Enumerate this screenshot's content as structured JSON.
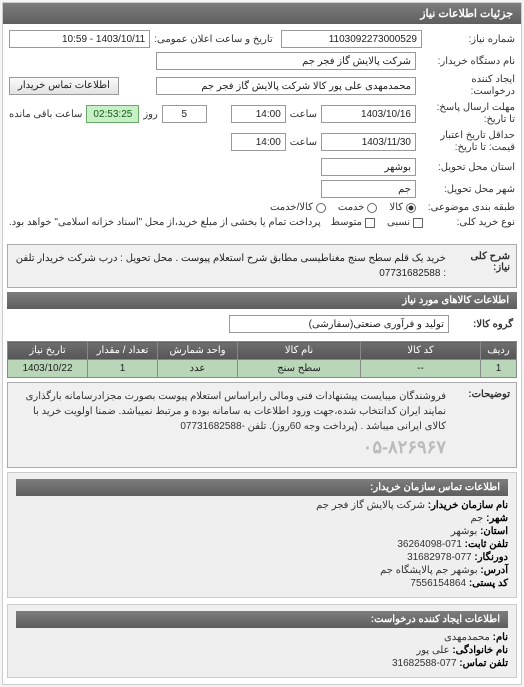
{
  "panel_title": "جزئیات اطلاعات نیاز",
  "header": {
    "labels": {
      "niaz_no": "شماره نیاز:",
      "device_name": "نام دستگاه خریدار:",
      "requester": "درخواست:",
      "creator": "ایجاد کننده",
      "public_date": "تاریخ و ساعت اعلان عمومی:",
      "contact_btn": "اطلاعات تماس خریدار",
      "deadline": "مهلت ارسال پاسخ:",
      "until": "تا تاریخ:",
      "time": "ساعت",
      "day": "روز",
      "remaining_time": "ساعت باقی مانده",
      "price_valid": "حداقل تاریخ اعتبار",
      "price_until": "قیمت: تا تاریخ:",
      "state": "استان محل تحویل:",
      "city": "شهر محل تحویل:",
      "subject_category": "طبقه بندی موضوعی:",
      "purchase_type": "نوع خرید کلی:",
      "purchase_note": "پرداخت تمام یا بخشی از مبلغ خرید،از محل \"اسناد خزانه اسلامی\" خواهد بود."
    },
    "values": {
      "niaz_no": "1103092273000529",
      "device_name": "شرکت پالایش گاز فجر جم",
      "creator": "محمدمهدی علی پور کالا شرکت پالایش گاز فجر جم",
      "public_date": "1403/10/11 - 10:59",
      "deadline_date": "1403/10/16",
      "deadline_time": "14:00",
      "days_left": "5",
      "countdown": "02:53:25",
      "price_date": "1403/11/30",
      "price_time": "14:00",
      "state": "بوشهر",
      "city": "جم"
    },
    "radio_options": {
      "kala": "کالا",
      "service": "خدمت",
      "both": "کالا/خدمت"
    },
    "radio_selected": "kala",
    "check_options": {
      "relative": "نسبی",
      "absolute": "متوسط"
    }
  },
  "desc": {
    "label": "شرح کلی نیاز:",
    "text": "خرید یک قلم سطح سنج مغناطیسی مطابق شرح استعلام پیوست . محل تحویل : درب شرکت خریدار تلفن : 07731682588"
  },
  "goods_header": "اطلاعات کالاهای مورد نیاز",
  "group": {
    "label": "گروه کالا:",
    "value": "تولید و فرآوری صنعتی(سفارشی)"
  },
  "table": {
    "columns": [
      "ردیف",
      "کد کالا",
      "نام کالا",
      "واحد شمارش",
      "تعداد / مقدار",
      "تاریخ نیاز"
    ],
    "rows": [
      [
        "1",
        "--",
        "سطح سنج",
        "عدد",
        "1",
        "1403/10/22"
      ]
    ],
    "col_widths": [
      "36px",
      "120px",
      "auto",
      "80px",
      "70px",
      "80px"
    ]
  },
  "note": {
    "label": "توضیحات:",
    "text": "فروشندگان میبایست پیشنهادات فنی ومالی رابراساس استعلام پیوست بصورت مجزادرسامانه بارگذاری نمایند ایران کدانتخاب شده،جهت ورود اطلاعات به سامانه بوده و مرتبط نمیباشد. ضمنا اولویت خرید با کالای ایرانی میباشد . (پرداخت وجه 60روز). تلفن -07731682588",
    "phone_watermark": "۰۵-۸۲۶۹۶۷"
  },
  "buyer_section": {
    "title": "اطلاعات تماس سازمان خریدار:",
    "lines": [
      {
        "k": "نام سازمان خریدار:",
        "v": "شرکت پالایش گاز فجر جم"
      },
      {
        "k": "شهر:",
        "v": "جم"
      },
      {
        "k": "استان:",
        "v": "بوشهر"
      },
      {
        "k": "تلفن ثابت:",
        "v": "071-36264098"
      },
      {
        "k": "دورنگار:",
        "v": "077-31682978"
      },
      {
        "k": "آدرس:",
        "v": "بوشهر جم پالایشگاه جم"
      },
      {
        "k": "کد پستی:",
        "v": "7556154864"
      }
    ]
  },
  "requester_section": {
    "title": "اطلاعات ایجاد کننده درخواست:",
    "lines": [
      {
        "k": "نام:",
        "v": "محمدمهدی"
      },
      {
        "k": "نام خانوادگی:",
        "v": "علی پور"
      },
      {
        "k": "تلفن تماس:",
        "v": "077-31682588"
      }
    ]
  },
  "colors": {
    "header_bg": "#6a6a6a",
    "countdown_bg": "#c7f0c7",
    "row_bg": "#b9d6b9"
  }
}
